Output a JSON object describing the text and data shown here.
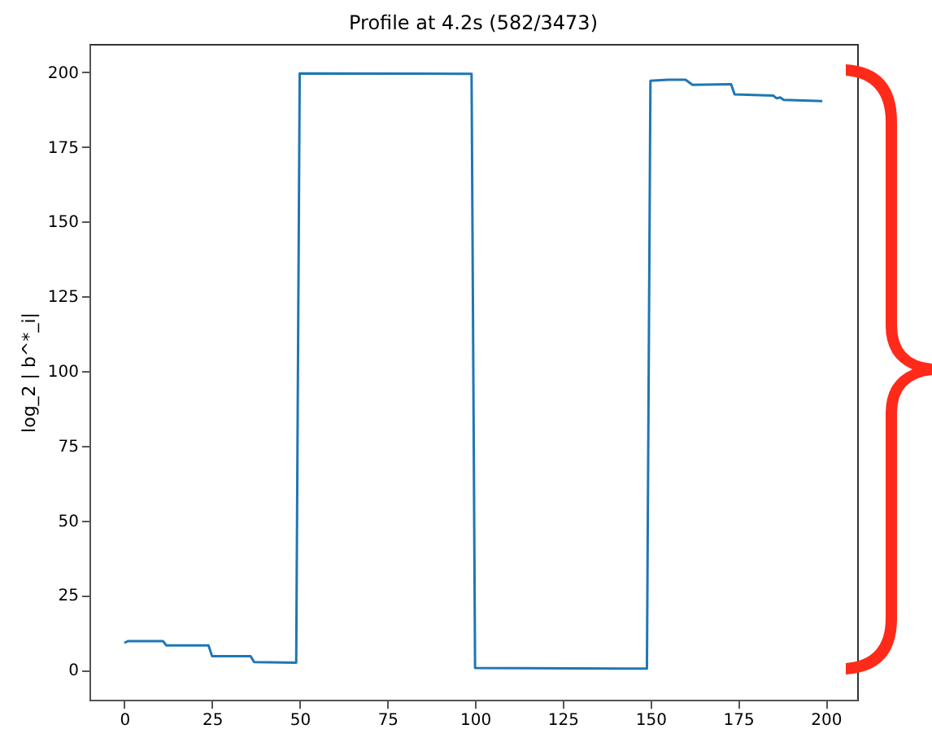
{
  "chart_data": {
    "type": "line",
    "title": "Profile at 4.2s (582/3473)",
    "ylabel": "log_2 | b^*_i|",
    "x": [
      0,
      1,
      11,
      12,
      24,
      25,
      36,
      37,
      49,
      50,
      99,
      100,
      149,
      150,
      155,
      160,
      162,
      173,
      174,
      185,
      186,
      187,
      188,
      199
    ],
    "series": [
      {
        "color": "#1f77b4",
        "values": [
          9,
          9.6,
          9.6,
          8.2,
          8.2,
          4.6,
          4.6,
          2.6,
          2.4,
          199.6,
          199.5,
          0.6,
          0.4,
          197.2,
          197.5,
          197.5,
          195.8,
          196,
          192.6,
          192.2,
          191.3,
          191.6,
          190.8,
          190.4
        ]
      }
    ],
    "xlim": [
      -9.95,
      208.95
    ],
    "xticks": [
      0,
      25,
      50,
      75,
      100,
      125,
      150,
      175,
      200
    ],
    "ylim": [
      -10,
      209.5
    ],
    "yticks": [
      0,
      25,
      50,
      75,
      100,
      125,
      150,
      175,
      200
    ],
    "grid": false,
    "legend": false,
    "marker": "none",
    "line_style": "solid"
  }
}
